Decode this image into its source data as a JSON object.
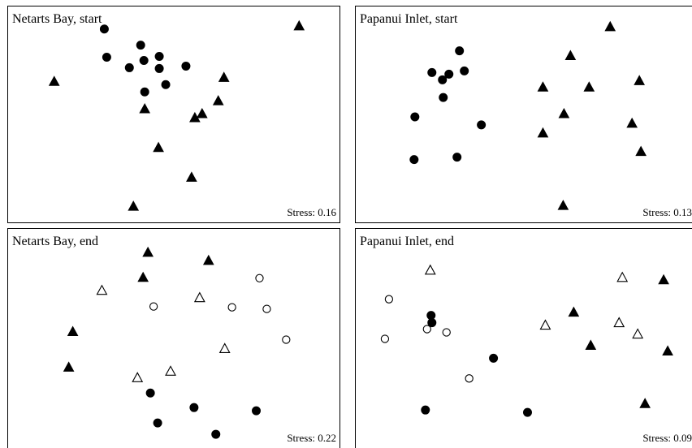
{
  "chart_data": [
    {
      "type": "scatter",
      "title": "Netarts Bay, start",
      "stress_label": "Stress: 0.16",
      "xlim": [
        0,
        410
      ],
      "ylim": [
        0,
        268
      ],
      "series": [
        {
          "marker": "filled-circle",
          "x": [
            119,
            122,
            164,
            168,
            187,
            150,
            187,
            220,
            169,
            195
          ],
          "y": [
            28,
            63,
            48,
            67,
            62,
            76,
            77,
            74,
            106,
            97
          ]
        },
        {
          "marker": "filled-triangle",
          "x": [
            360,
            57,
            267,
            260,
            169,
            240,
            231,
            186,
            227,
            155
          ],
          "y": [
            24,
            93,
            88,
            117,
            127,
            133,
            138,
            175,
            212,
            248
          ]
        }
      ]
    },
    {
      "type": "scatter",
      "title": "Papanui Inlet, start",
      "stress_label": "Stress: 0.13",
      "xlim": [
        0,
        415
      ],
      "ylim": [
        0,
        268
      ],
      "series": [
        {
          "marker": "filled-circle",
          "x": [
            128,
            94,
            107,
            115,
            134,
            108,
            73,
            155,
            125,
            72
          ],
          "y": [
            55,
            82,
            91,
            84,
            80,
            113,
            137,
            147,
            187,
            190
          ]
        },
        {
          "marker": "filled-triangle",
          "x": [
            314,
            265,
            350,
            231,
            288,
            257,
            341,
            231,
            352,
            256
          ],
          "y": [
            25,
            61,
            92,
            100,
            100,
            133,
            145,
            157,
            180,
            247
          ]
        }
      ]
    },
    {
      "type": "scatter",
      "title": "Netarts Bay, end",
      "stress_label": "Stress: 0.22",
      "xlim": [
        0,
        410
      ],
      "ylim": [
        0,
        271
      ],
      "series": [
        {
          "marker": "filled-triangle",
          "x": [
            173,
            248,
            167,
            80,
            75
          ],
          "y": [
            29,
            39,
            60,
            127,
            171
          ]
        },
        {
          "marker": "open-triangle",
          "x": [
            116,
            237,
            268,
            201,
            160
          ],
          "y": [
            76,
            85,
            148,
            176,
            184
          ]
        },
        {
          "marker": "open-circle",
          "x": [
            311,
            180,
            277,
            320,
            344
          ],
          "y": [
            61,
            96,
            97,
            99,
            137
          ]
        },
        {
          "marker": "filled-circle",
          "x": [
            176,
            230,
            307,
            185,
            257
          ],
          "y": [
            203,
            221,
            225,
            240,
            254
          ]
        }
      ]
    },
    {
      "type": "scatter",
      "title": "Papanui Inlet, end",
      "stress_label": "Stress: 0.09",
      "xlim": [
        0,
        415
      ],
      "ylim": [
        0,
        271
      ],
      "series": [
        {
          "marker": "open-triangle",
          "x": [
            92,
            329,
            325,
            234,
            348
          ],
          "y": [
            51,
            60,
            116,
            119,
            130
          ]
        },
        {
          "marker": "filled-triangle",
          "x": [
            380,
            269,
            290,
            385,
            357
          ],
          "y": [
            63,
            103,
            144,
            151,
            216
          ]
        },
        {
          "marker": "open-circle",
          "x": [
            41,
            36,
            88,
            112,
            140
          ],
          "y": [
            87,
            136,
            124,
            128,
            185
          ]
        },
        {
          "marker": "filled-circle",
          "x": [
            93,
            94,
            170,
            86,
            212
          ],
          "y": [
            107,
            116,
            160,
            224,
            227
          ]
        }
      ]
    }
  ]
}
